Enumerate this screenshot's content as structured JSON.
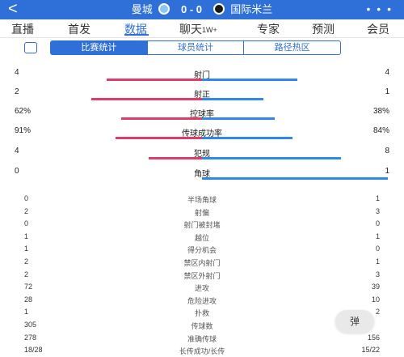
{
  "header": {
    "back_glyph": "<",
    "home_team": "曼城",
    "score": "0 - 0",
    "away_team": "国际米兰",
    "more_glyph": "• • •",
    "bg_color": "#2f6fd8"
  },
  "tabs": [
    {
      "label": "直播"
    },
    {
      "label": "首发"
    },
    {
      "label": "数据",
      "active": true
    },
    {
      "label": "聊天",
      "badge": "1W+"
    },
    {
      "label": "专家"
    },
    {
      "label": "预测"
    },
    {
      "label": "会员"
    }
  ],
  "segments": [
    "比赛统计",
    "球员统计",
    "路径热区"
  ],
  "bar_stats": [
    {
      "label": "射门",
      "home": "4",
      "away": "4"
    },
    {
      "label": "射正",
      "home": "2",
      "away": "1"
    },
    {
      "label": "控球率",
      "home": "62%",
      "away": "38%"
    },
    {
      "label": "传球成功率",
      "home": "91%",
      "away": "84%"
    },
    {
      "label": "犯规",
      "home": "4",
      "away": "8"
    },
    {
      "label": "角球",
      "home": "0",
      "away": "1"
    }
  ],
  "stats": [
    {
      "label": "半场角球",
      "home": "0",
      "away": "1"
    },
    {
      "label": "射偏",
      "home": "2",
      "away": "3"
    },
    {
      "label": "射门被封堵",
      "home": "0",
      "away": "0"
    },
    {
      "label": "越位",
      "home": "1",
      "away": "1"
    },
    {
      "label": "得分机会",
      "home": "1",
      "away": "0"
    },
    {
      "label": "禁区内射门",
      "home": "2",
      "away": "1"
    },
    {
      "label": "禁区外射门",
      "home": "2",
      "away": "3"
    },
    {
      "label": "进攻",
      "home": "72",
      "away": "39"
    },
    {
      "label": "危险进攻",
      "home": "28",
      "away": "10"
    },
    {
      "label": "扑救",
      "home": "1",
      "away": "2"
    },
    {
      "label": "传球数",
      "home": "305",
      "away": ""
    },
    {
      "label": "准确传球",
      "home": "278",
      "away": "156"
    },
    {
      "label": "长传成功/长传",
      "home": "18/28",
      "away": "15/22"
    }
  ],
  "float_button": "弹",
  "colors": {
    "home": "#e03c6a",
    "away": "#2f88e8",
    "accent": "#2f6fd8"
  }
}
